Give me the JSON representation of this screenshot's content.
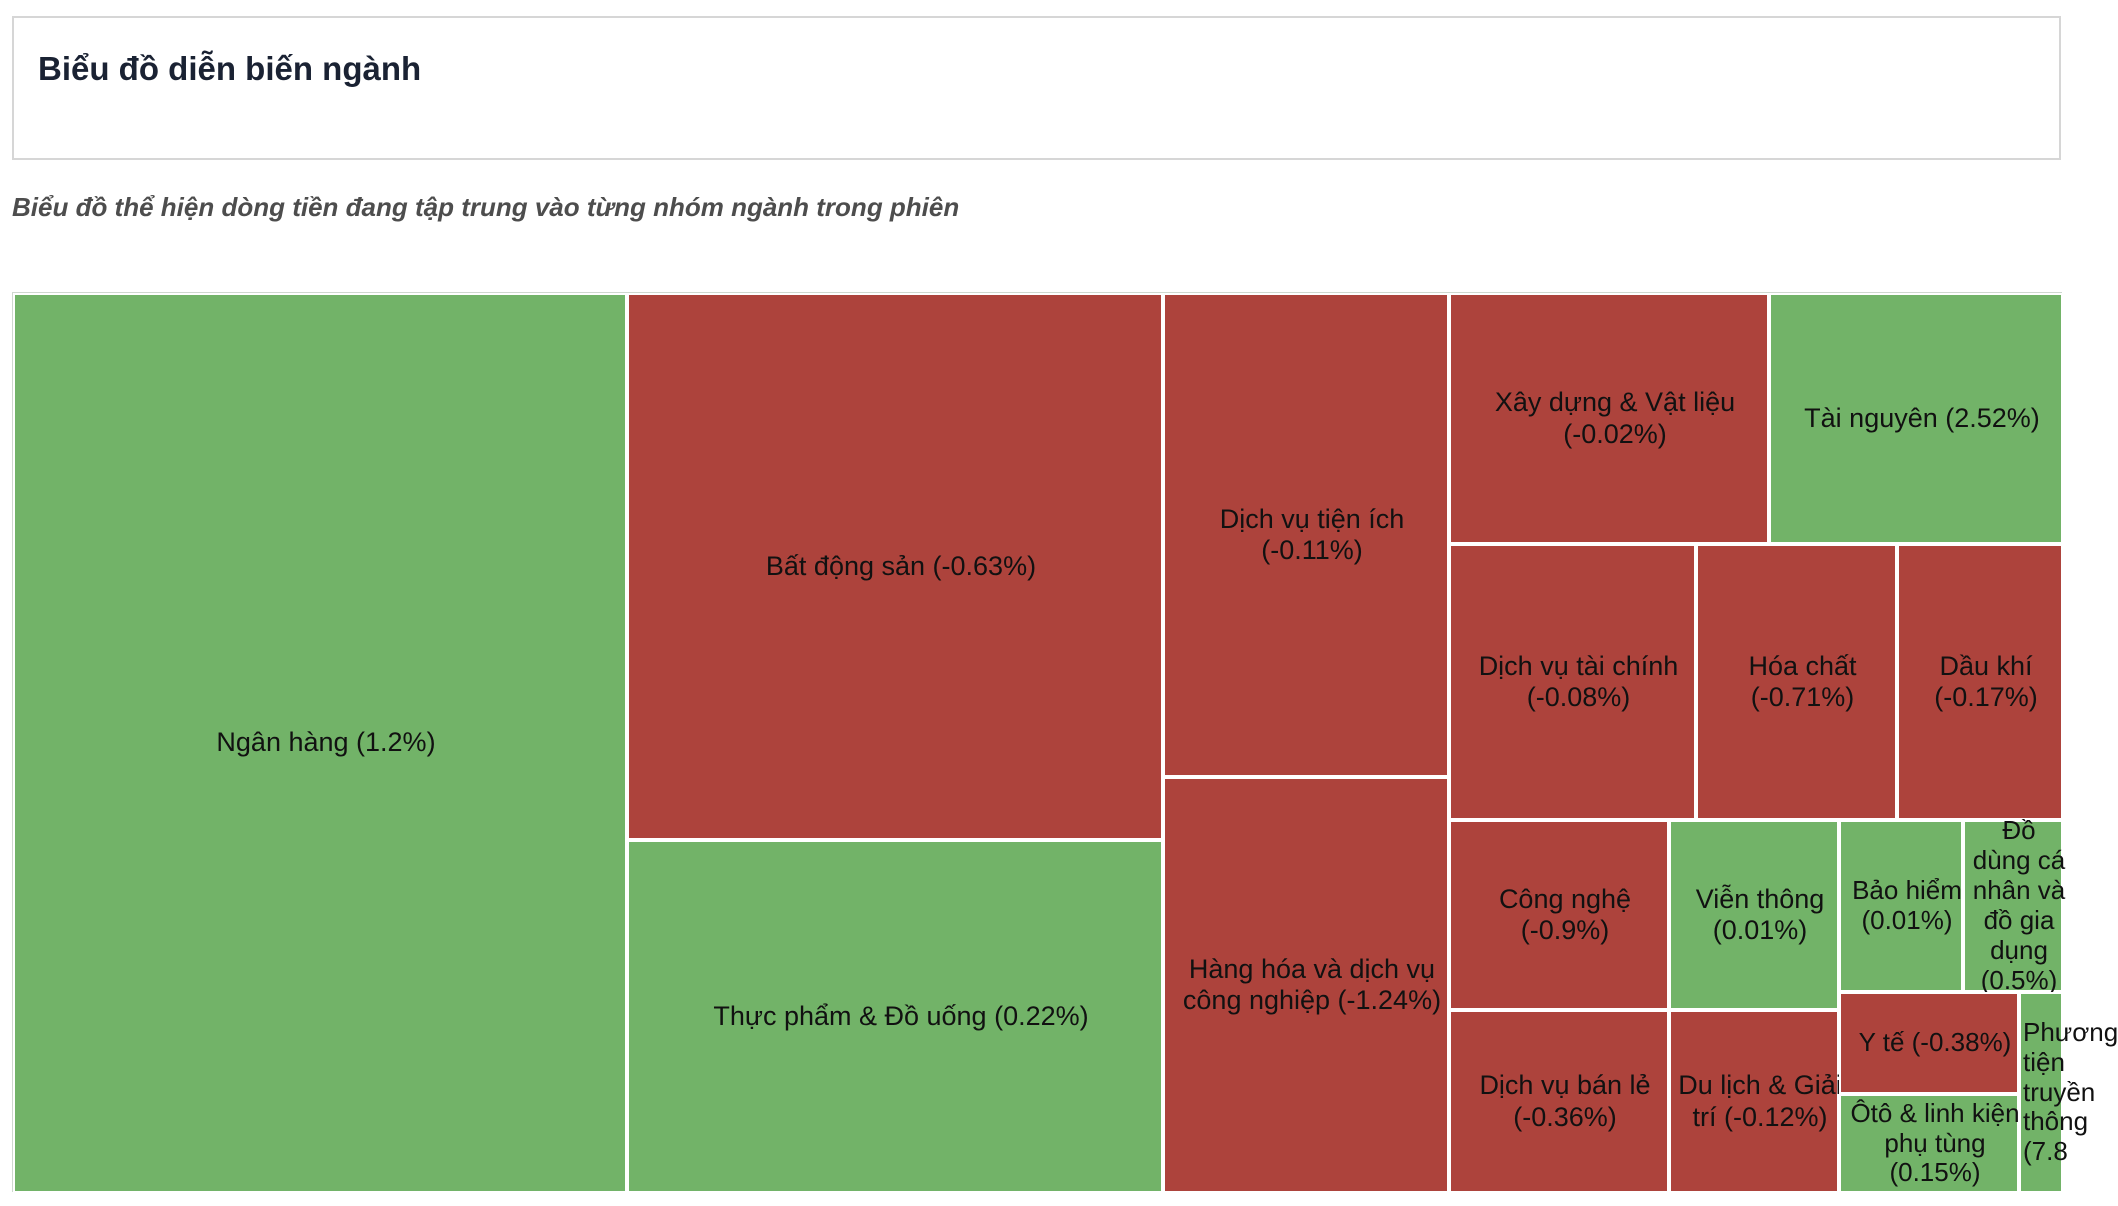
{
  "header": {
    "title": "Biểu đồ diễn biến ngành"
  },
  "subtitle": "Biểu đồ thể hiện dòng tiền đang tập trung vào từng nhóm ngành trong phiên",
  "colors": {
    "positive": "#72b368",
    "negative": "#ad433c"
  },
  "chart_data": {
    "type": "treemap",
    "tiles": [
      {
        "name": "Ngân hàng",
        "change_pct": 1.2,
        "label": "Ngân hàng (1.2%)"
      },
      {
        "name": "Bất động sản",
        "change_pct": -0.63,
        "label": "Bất động sản (-0.63%)"
      },
      {
        "name": "Thực phẩm & Đồ uống",
        "change_pct": 0.22,
        "label": "Thực phẩm & Đồ uống (0.22%)"
      },
      {
        "name": "Dịch vụ tiện ích",
        "change_pct": -0.11,
        "label": "Dịch vụ tiện ích (-0.11%)"
      },
      {
        "name": "Hàng hóa và dịch vụ công nghiệp",
        "change_pct": -1.24,
        "label": "Hàng hóa và dịch vụ công nghiệp (-1.24%)"
      },
      {
        "name": "Xây dựng & Vật liệu",
        "change_pct": -0.02,
        "label": "Xây dựng & Vật liệu (-0.02%)"
      },
      {
        "name": "Tài nguyên",
        "change_pct": 2.52,
        "label": "Tài nguyên (2.52%)"
      },
      {
        "name": "Dịch vụ tài chính",
        "change_pct": -0.08,
        "label": "Dịch vụ tài chính (-0.08%)"
      },
      {
        "name": "Hóa chất",
        "change_pct": -0.71,
        "label": "Hóa chất (-0.71%)"
      },
      {
        "name": "Dầu khí",
        "change_pct": -0.17,
        "label": "Dầu khí (-0.17%)"
      },
      {
        "name": "Công nghệ",
        "change_pct": -0.9,
        "label": "Công nghệ (-0.9%)"
      },
      {
        "name": "Viễn thông",
        "change_pct": 0.01,
        "label": "Viễn thông (0.01%)"
      },
      {
        "name": "Bảo hiểm",
        "change_pct": 0.01,
        "label": "Bảo hiểm (0.01%)"
      },
      {
        "name": "Đồ dùng cá nhân và đồ gia dụng",
        "change_pct": 0.5,
        "label": "Đồ dùng cá nhân và đồ gia dụng (0.5%)"
      },
      {
        "name": "Dịch vụ bán lẻ",
        "change_pct": -0.36,
        "label": "Dịch vụ bán lẻ (-0.36%)"
      },
      {
        "name": "Du lịch & Giải trí",
        "change_pct": -0.12,
        "label": "Du lịch & Giải trí (-0.12%)"
      },
      {
        "name": "Y tế",
        "change_pct": -0.38,
        "label": "Y tế (-0.38%)"
      },
      {
        "name": "Ôtô & linh kiện phụ tùng",
        "change_pct": 0.15,
        "label": "Ôtô & linh kiện phụ tùng (0.15%)"
      },
      {
        "name": "Phương tiện truyền thông",
        "change_pct": 7.8,
        "label": "Phương tiện truyền thông (7.8"
      }
    ]
  }
}
